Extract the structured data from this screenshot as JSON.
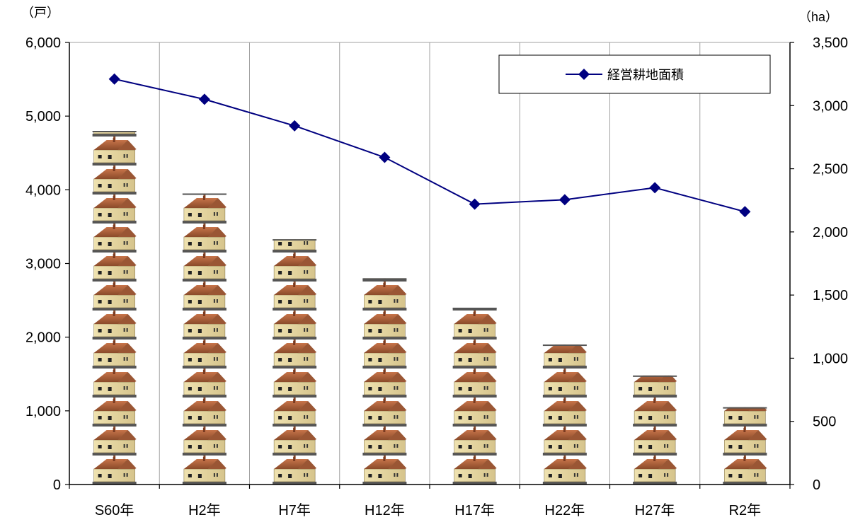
{
  "chart_data": {
    "type": "bar",
    "categories": [
      "S60年",
      "H2年",
      "H7年",
      "H12年",
      "H17年",
      "H22年",
      "H27年",
      "R2年"
    ],
    "y_left": {
      "unit": "（戸）",
      "min": 0,
      "max": 6000,
      "ticks": [
        "0",
        "1,000",
        "2,000",
        "3,000",
        "4,000",
        "5,000",
        "6,000"
      ]
    },
    "y_right": {
      "unit": "（ha）",
      "min": 0,
      "max": 3500,
      "ticks": [
        "0",
        "500",
        "1,000",
        "1,500",
        "2,000",
        "2,500",
        "3,000",
        "3,500"
      ]
    },
    "grid": "vertical",
    "series": [
      {
        "kind": "bar",
        "axis": "left",
        "marker": "house-pictogram",
        "values": [
          4800,
          3950,
          3330,
          2800,
          2400,
          1900,
          1480,
          1050
        ]
      },
      {
        "kind": "line",
        "axis": "right",
        "name": "経営耕地面積",
        "marker": "diamond",
        "color": "#000080",
        "values": [
          3210,
          3050,
          2840,
          2590,
          2220,
          2255,
          2350,
          2160
        ]
      }
    ],
    "legend": {
      "placement": "top-right",
      "label": "経営耕地面積"
    }
  }
}
